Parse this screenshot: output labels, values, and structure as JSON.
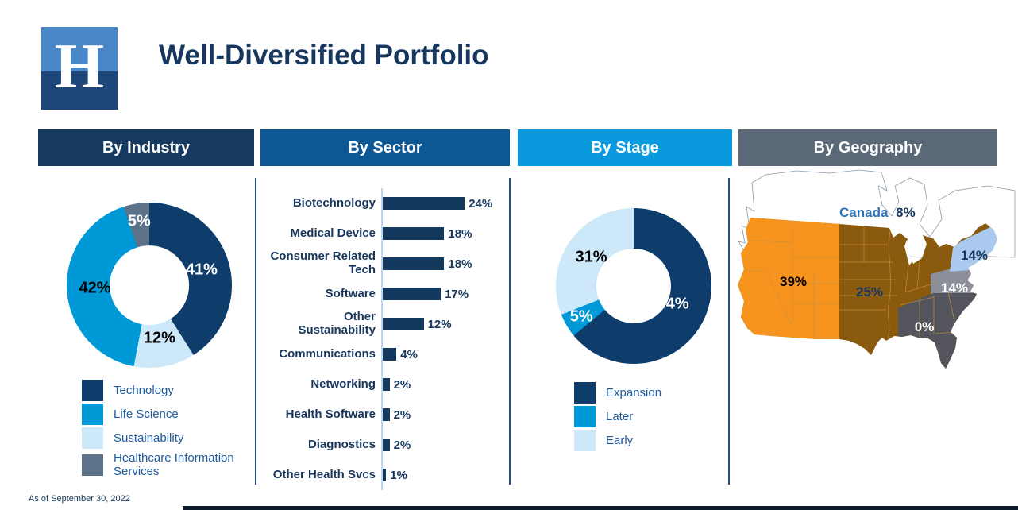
{
  "slide": {
    "title": "Well-Diversified Portfolio",
    "logo_letter": "H",
    "as_of": "As of September 30, 2022"
  },
  "panels": [
    {
      "header": "By Industry",
      "header_color": "#16395F"
    },
    {
      "header": "By Sector",
      "header_color": "#0E5795"
    },
    {
      "header": "By Stage",
      "header_color": "#0A99DC"
    },
    {
      "header": "By Geography",
      "header_color": "#5A6877"
    }
  ],
  "chart_data": [
    {
      "type": "pie",
      "subtype": "donut",
      "title": "By Industry",
      "slices_clockwise": [
        {
          "label": "Technology",
          "value": 41,
          "color": "#0F3D6B",
          "label_color": "#FFFFFF"
        },
        {
          "label": "Sustainability",
          "value": 12,
          "color": "#CDE9F9",
          "label_color": "#000000"
        },
        {
          "label": "Life Science",
          "value": 42,
          "color": "#0099D8",
          "label_color": "#000000"
        },
        {
          "label": "Healthcare Information Services",
          "value": 5,
          "color": "#5B7288",
          "label_color": "#FFFFFF"
        }
      ],
      "legend": [
        {
          "label": "Technology",
          "color": "#0F3D6B"
        },
        {
          "label": "Life Science",
          "color": "#0099D8"
        },
        {
          "label": "Sustainability",
          "color": "#CDE9F9"
        },
        {
          "label": "Healthcare Information Services",
          "color": "#5B7288"
        }
      ],
      "unit": "%"
    },
    {
      "type": "bar",
      "orientation": "horizontal",
      "title": "By Sector",
      "categories": [
        "Biotechnology",
        "Medical Device",
        "Consumer Related Tech",
        "Software",
        "Other Sustainability",
        "Communications",
        "Networking",
        "Health Software",
        "Diagnostics",
        "Other Health Svcs"
      ],
      "values": [
        24,
        18,
        18,
        17,
        12,
        4,
        2,
        2,
        2,
        1
      ],
      "unit": "%",
      "bar_color": "#14395F",
      "axis_line_color": "#BDD7EE"
    },
    {
      "type": "pie",
      "subtype": "donut",
      "title": "By Stage",
      "slices_clockwise": [
        {
          "label": "Expansion",
          "value": 64,
          "color": "#0F3D6B",
          "label_color": "#FFFFFF"
        },
        {
          "label": "Later",
          "value": 5,
          "color": "#0099D8",
          "label_color": "#FFFFFF"
        },
        {
          "label": "Early",
          "value": 31,
          "color": "#CDE9F9",
          "label_color": "#000000"
        }
      ],
      "legend": [
        {
          "label": "Expansion",
          "color": "#0F3D6B"
        },
        {
          "label": "Later",
          "color": "#0099D8"
        },
        {
          "label": "Early",
          "color": "#CDE9F9"
        }
      ],
      "unit": "%"
    },
    {
      "type": "map",
      "title": "By Geography",
      "regions": [
        {
          "name": "Canada",
          "label": "Canada",
          "value": "8%",
          "color": "#FFFFFF",
          "text_color": "#17375E"
        },
        {
          "name": "West",
          "value": "39%",
          "color": "#F7941E",
          "text_color": "#000000"
        },
        {
          "name": "Central",
          "value": "25%",
          "color": "#8A5A0F",
          "text_color": "#17375E"
        },
        {
          "name": "Northeast",
          "value": "14%",
          "color": "#A9C9EE",
          "text_color": "#17375E"
        },
        {
          "name": "Mid-Atlantic",
          "value": "14%",
          "color": "#8A8F9A",
          "text_color": "#FFFFFF"
        },
        {
          "name": "Southeast",
          "value": "0%",
          "color": "#54555C",
          "text_color": "#FFFFFF"
        }
      ]
    }
  ]
}
